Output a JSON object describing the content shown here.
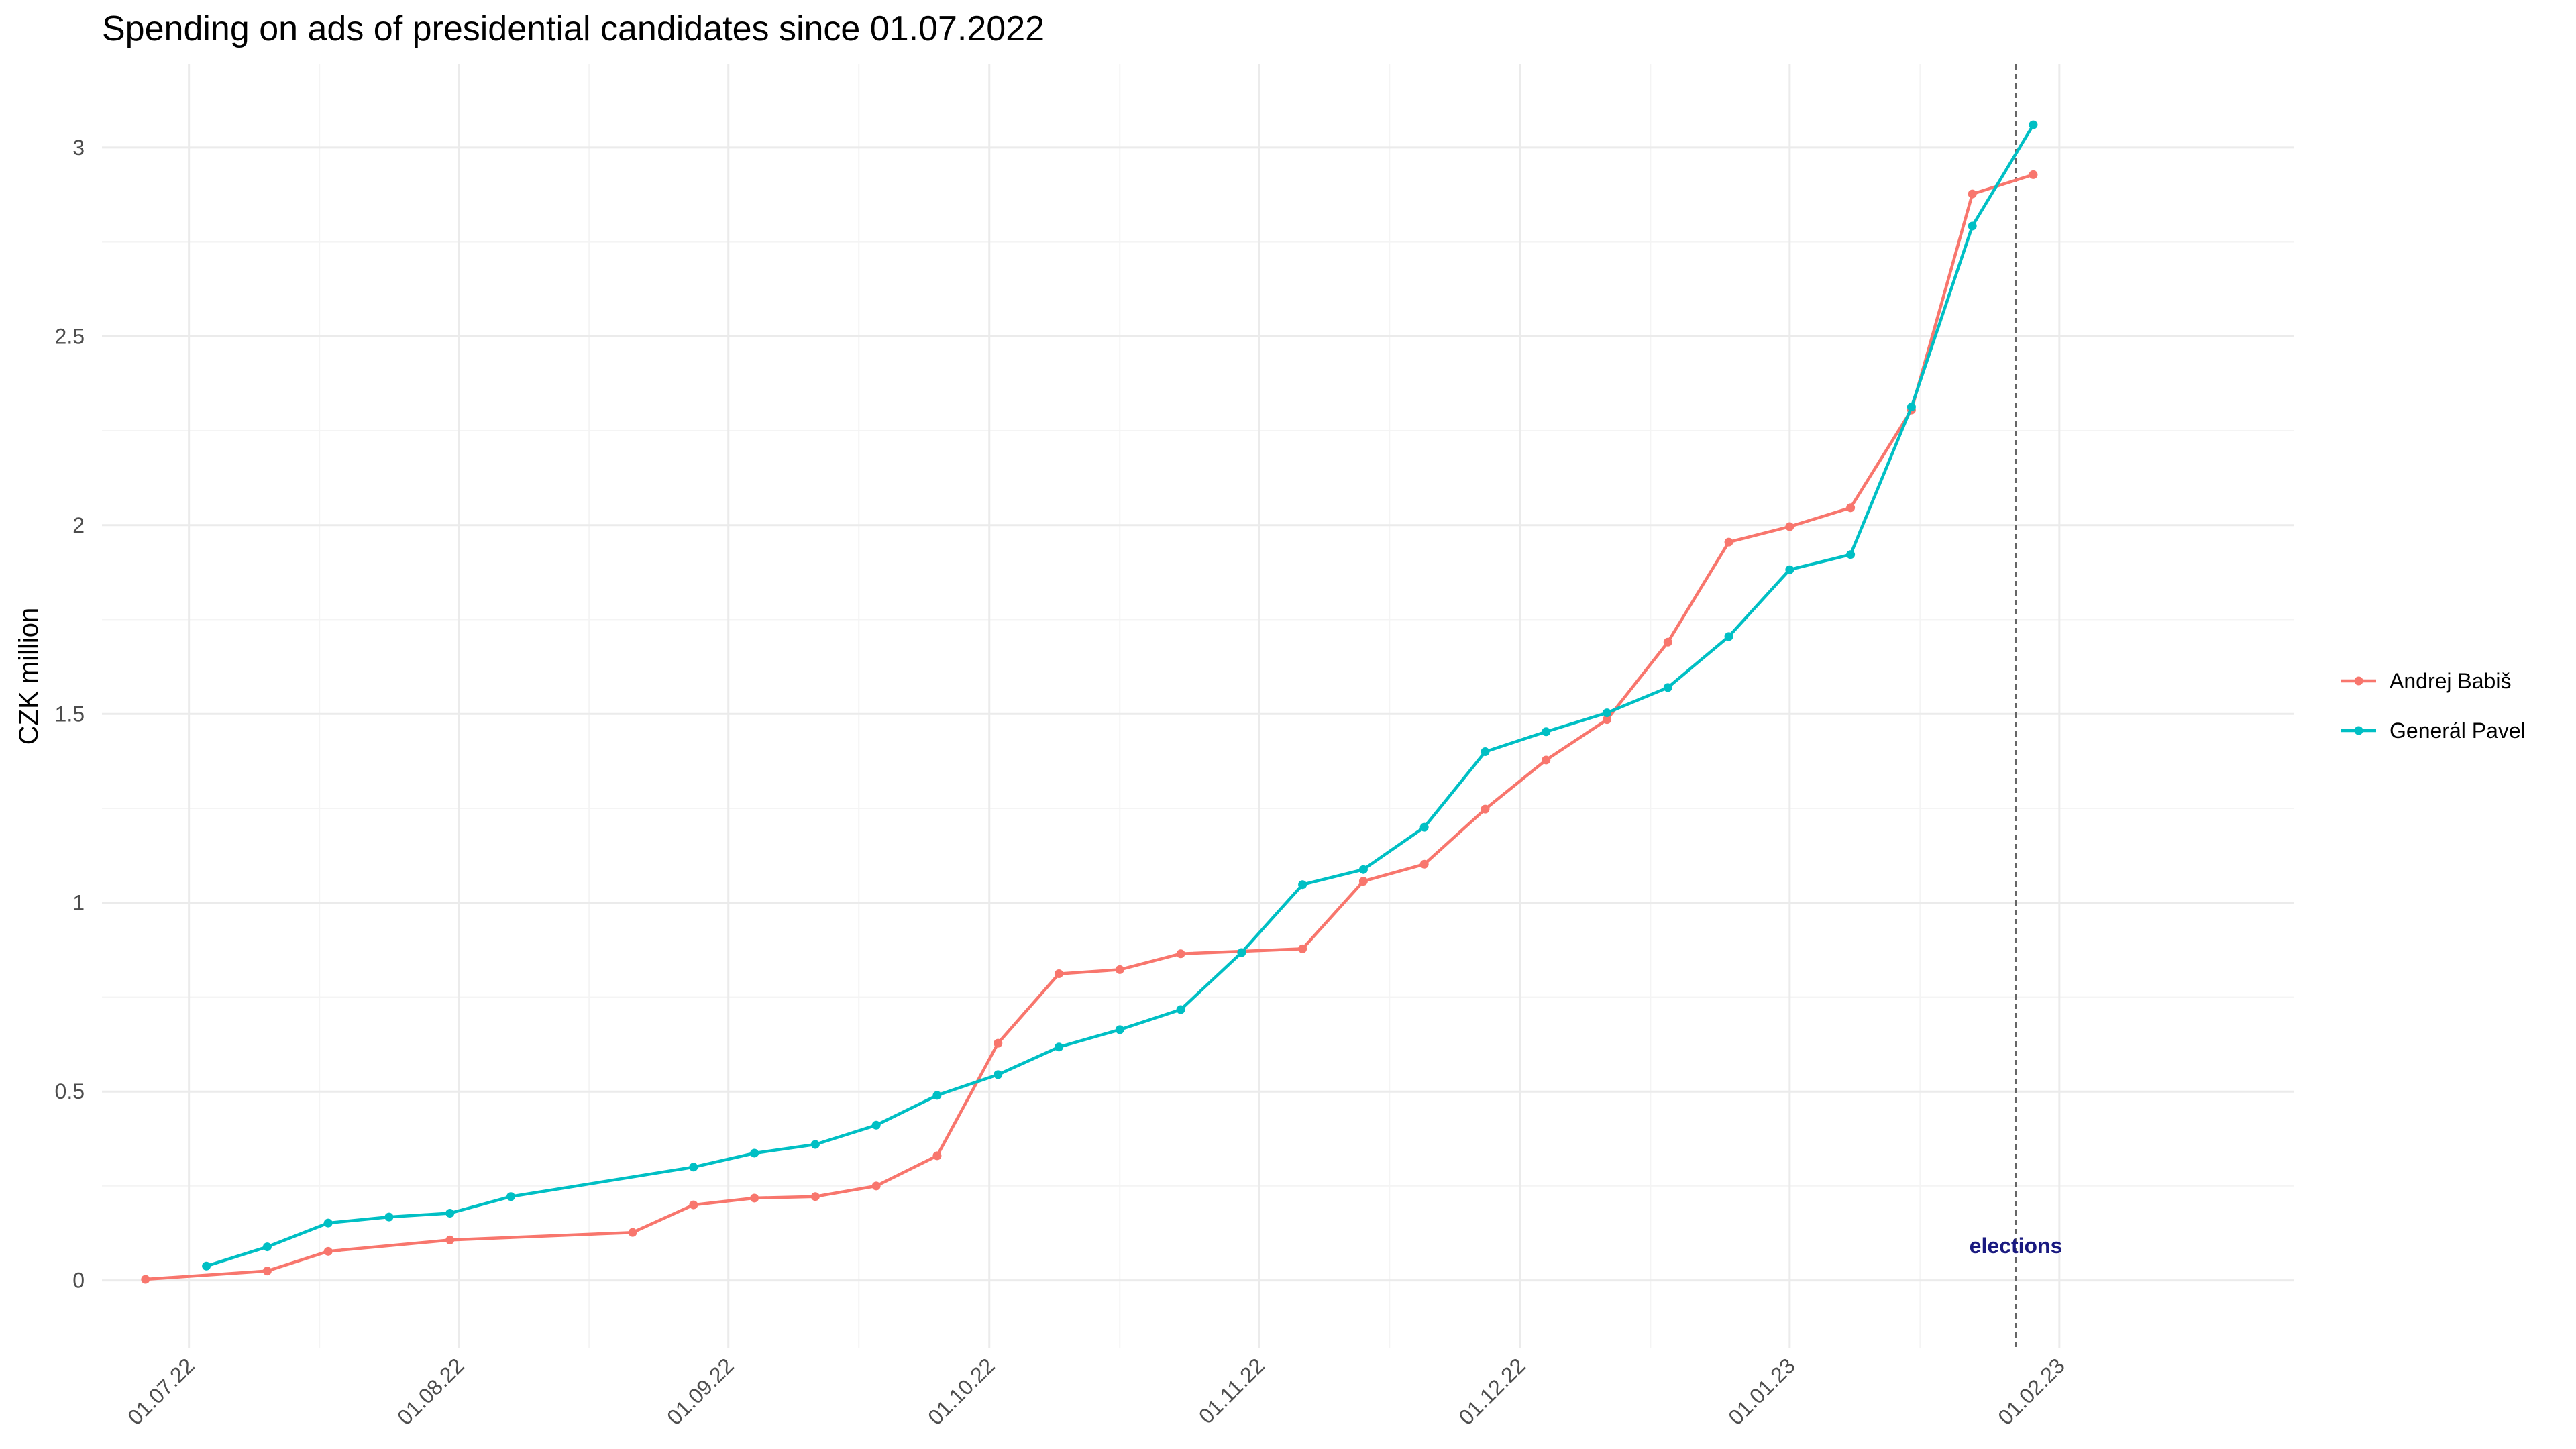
{
  "chart_data": {
    "type": "line",
    "title": "Spending on ads of presidential candidates since 01.07.2022",
    "ylabel": "CZK million",
    "xlabel": "",
    "x_range": [
      "2022-06-21",
      "2023-02-28"
    ],
    "ylim": [
      -0.18,
      3.22
    ],
    "y_ticks": [
      0,
      0.5,
      1,
      1.5,
      2,
      2.5,
      3
    ],
    "y_tick_labels": [
      "0",
      "0.5",
      "1",
      "1.5",
      "2",
      "2.5",
      "3"
    ],
    "x_ticks": [
      "2022-07-01",
      "2022-08-01",
      "2022-09-01",
      "2022-10-01",
      "2022-11-01",
      "2022-12-01",
      "2023-01-01",
      "2023-02-01"
    ],
    "x_tick_labels": [
      "01.07.22",
      "01.08.22",
      "01.09.22",
      "01.10.22",
      "01.11.22",
      "01.12.22",
      "01.01.23",
      "01.02.23"
    ],
    "grid": true,
    "legend_position": "right",
    "annotation": {
      "label": "elections",
      "x": "2023-01-27"
    },
    "series": [
      {
        "name": "Andrej Babiš",
        "color": "#F8766D",
        "points": [
          [
            "2022-06-26",
            0.003
          ],
          [
            "2022-07-10",
            0.025
          ],
          [
            "2022-07-17",
            0.077
          ],
          [
            "2022-07-31",
            0.107
          ],
          [
            "2022-08-21",
            0.127
          ],
          [
            "2022-08-28",
            0.2
          ],
          [
            "2022-09-04",
            0.218
          ],
          [
            "2022-09-11",
            0.222
          ],
          [
            "2022-09-18",
            0.25
          ],
          [
            "2022-09-25",
            0.33
          ],
          [
            "2022-10-02",
            0.628
          ],
          [
            "2022-10-09",
            0.812
          ],
          [
            "2022-10-16",
            0.823
          ],
          [
            "2022-10-23",
            0.865
          ],
          [
            "2022-11-06",
            0.878
          ],
          [
            "2022-11-13",
            1.057
          ],
          [
            "2022-11-20",
            1.102
          ],
          [
            "2022-11-27",
            1.248
          ],
          [
            "2022-12-04",
            1.378
          ],
          [
            "2022-12-11",
            1.485
          ],
          [
            "2022-12-18",
            1.69
          ],
          [
            "2022-12-25",
            1.955
          ],
          [
            "2023-01-01",
            1.996
          ],
          [
            "2023-01-08",
            2.046
          ],
          [
            "2023-01-15",
            2.305
          ],
          [
            "2023-01-22",
            2.877
          ],
          [
            "2023-01-29",
            2.928
          ]
        ]
      },
      {
        "name": "Generál Pavel",
        "color": "#00BFC4",
        "points": [
          [
            "2022-07-03",
            0.038
          ],
          [
            "2022-07-10",
            0.089
          ],
          [
            "2022-07-17",
            0.152
          ],
          [
            "2022-07-24",
            0.168
          ],
          [
            "2022-07-31",
            0.178
          ],
          [
            "2022-08-07",
            0.222
          ],
          [
            "2022-08-28",
            0.3
          ],
          [
            "2022-09-04",
            0.337
          ],
          [
            "2022-09-11",
            0.36
          ],
          [
            "2022-09-18",
            0.411
          ],
          [
            "2022-09-25",
            0.49
          ],
          [
            "2022-10-02",
            0.545
          ],
          [
            "2022-10-09",
            0.618
          ],
          [
            "2022-10-16",
            0.664
          ],
          [
            "2022-10-23",
            0.717
          ],
          [
            "2022-10-30",
            0.868
          ],
          [
            "2022-11-06",
            1.048
          ],
          [
            "2022-11-13",
            1.088
          ],
          [
            "2022-11-20",
            1.2
          ],
          [
            "2022-11-27",
            1.4
          ],
          [
            "2022-12-04",
            1.453
          ],
          [
            "2022-12-11",
            1.503
          ],
          [
            "2022-12-18",
            1.57
          ],
          [
            "2022-12-25",
            1.705
          ],
          [
            "2023-01-01",
            1.882
          ],
          [
            "2023-01-08",
            1.922
          ],
          [
            "2023-01-15",
            2.313
          ],
          [
            "2023-01-22",
            2.792
          ],
          [
            "2023-01-29",
            3.06
          ]
        ]
      }
    ]
  }
}
